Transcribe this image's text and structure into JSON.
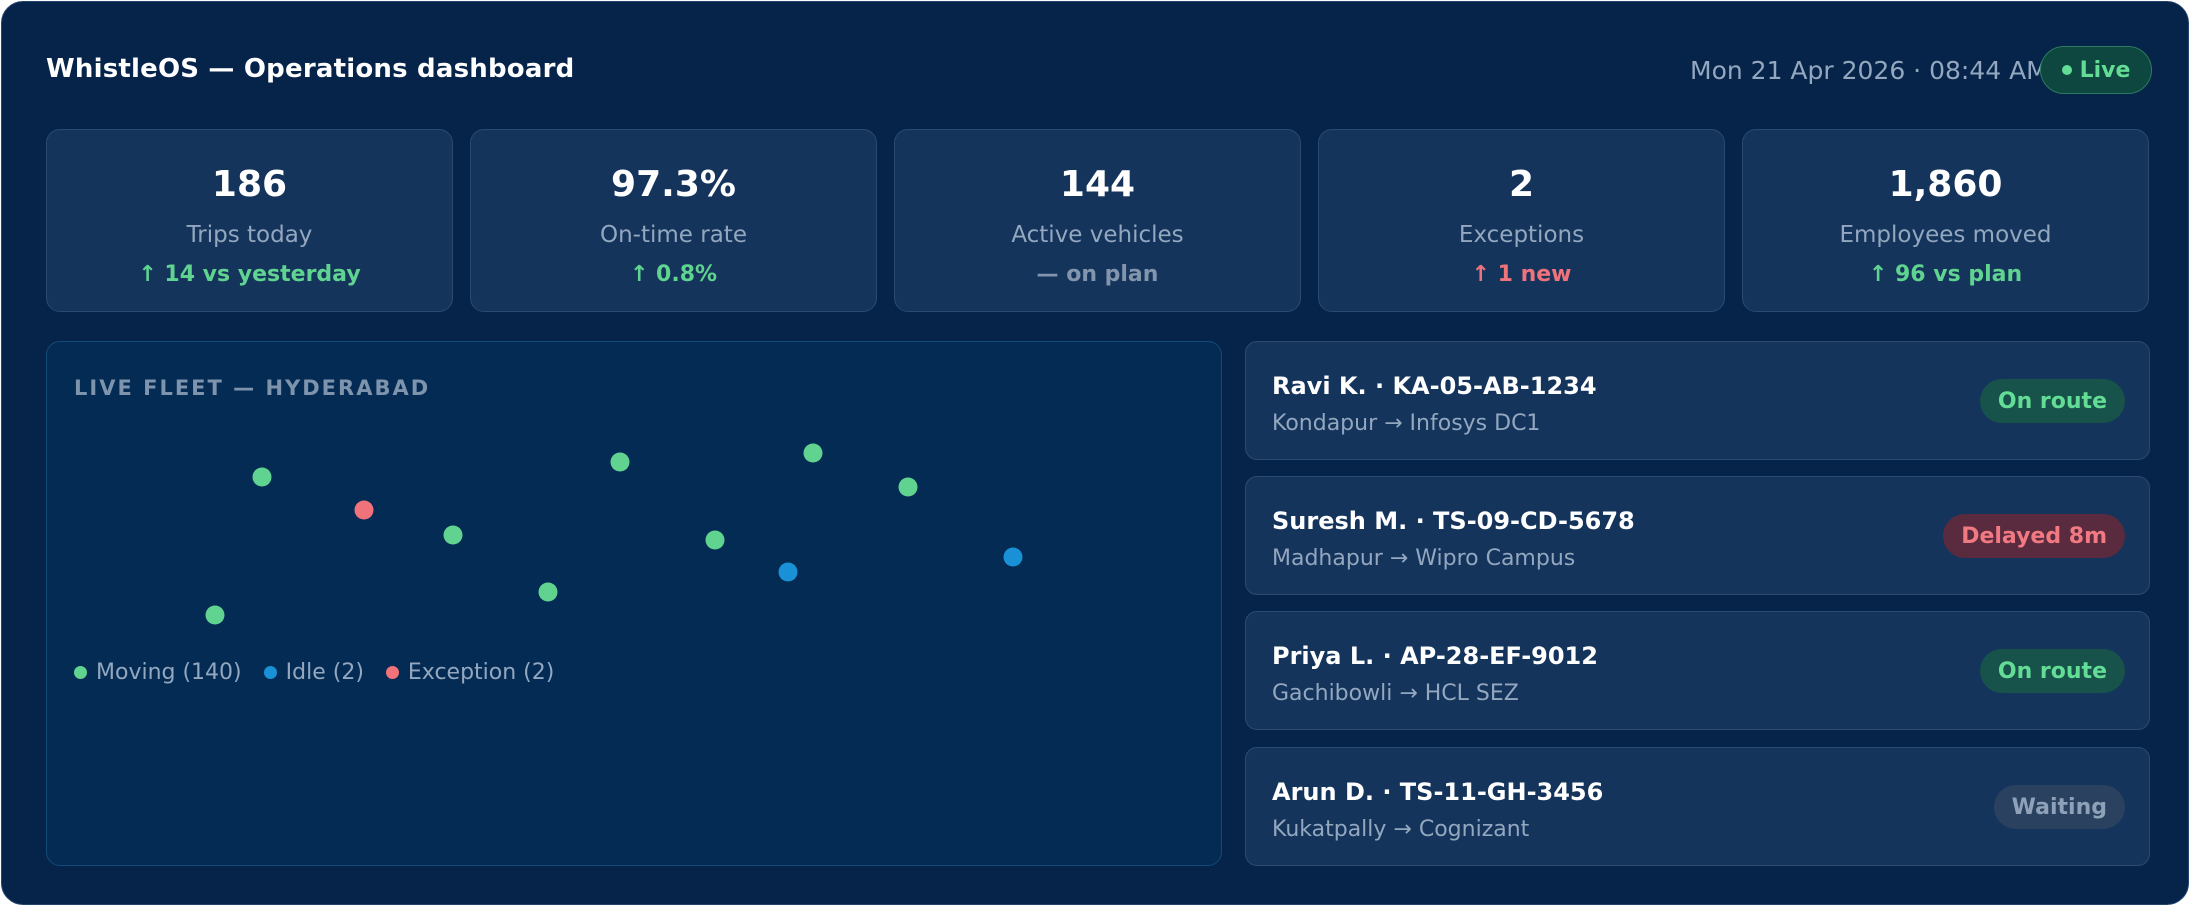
{
  "header": {
    "title": "WhistleOS — Operations dashboard",
    "datetime": "Mon 21 Apr 2026 · 08:44 AM",
    "live_label": "Live"
  },
  "kpis": [
    {
      "value": "186",
      "label": "Trips today",
      "delta": "↑ 14 vs yesterday",
      "trend": "positive"
    },
    {
      "value": "97.3%",
      "label": "On-time rate",
      "delta": "↑ 0.8%",
      "trend": "positive"
    },
    {
      "value": "144",
      "label": "Active vehicles",
      "delta": "— on plan",
      "trend": "neutral"
    },
    {
      "value": "2",
      "label": "Exceptions",
      "delta": "↑ 1 new",
      "trend": "negative"
    },
    {
      "value": "1,860",
      "label": "Employees moved",
      "delta": "↑ 96 vs plan",
      "trend": "positive"
    }
  ],
  "map": {
    "title": "LIVE FLEET — HYDERABAD",
    "colors": {
      "moving": "#5fd38f",
      "idle": "#1a90d6",
      "exception": "#f0727a"
    },
    "vehicles": [
      {
        "status": "moving"
      },
      {
        "status": "exception"
      },
      {
        "status": "moving"
      },
      {
        "status": "moving"
      },
      {
        "status": "moving"
      },
      {
        "status": "moving"
      },
      {
        "status": "moving"
      },
      {
        "status": "moving"
      },
      {
        "status": "moving"
      },
      {
        "status": "idle"
      },
      {
        "status": "idle"
      }
    ],
    "legend": [
      {
        "status": "moving",
        "label": "Moving (140)"
      },
      {
        "status": "idle",
        "label": "Idle (2)"
      },
      {
        "status": "exception",
        "label": "Exception (2)"
      }
    ]
  },
  "trips": [
    {
      "name": "Ravi K. · KA-05-AB-1234",
      "route": "Kondapur → Infosys DC1",
      "status": "On route",
      "tone": "green"
    },
    {
      "name": "Suresh M. · TS-09-CD-5678",
      "route": "Madhapur → Wipro Campus",
      "status": "Delayed 8m",
      "tone": "red"
    },
    {
      "name": "Priya L. · AP-28-EF-9012",
      "route": "Gachibowli → HCL SEZ",
      "status": "On route",
      "tone": "green"
    },
    {
      "name": "Arun D. · TS-11-GH-3456",
      "route": "Kukatpally → Cognizant",
      "status": "Waiting",
      "tone": "gray"
    }
  ]
}
